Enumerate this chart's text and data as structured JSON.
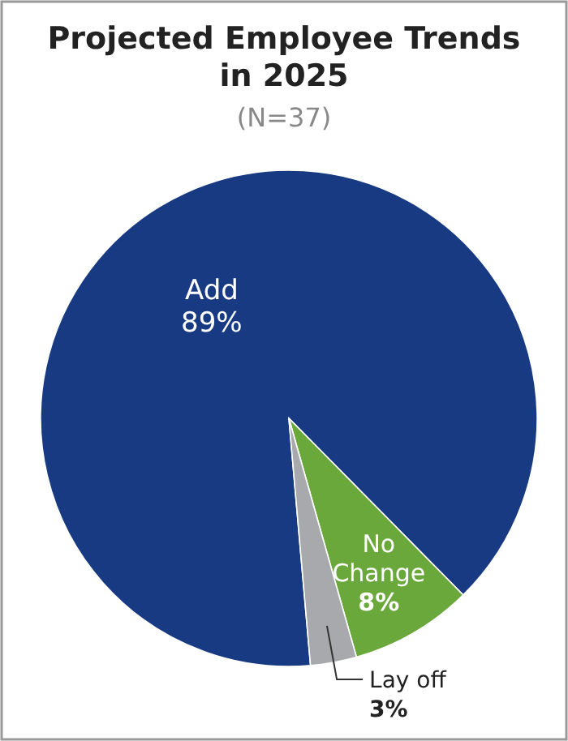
{
  "chart_data": {
    "type": "pie",
    "title": "Projected Employee Trends in 2025",
    "subtitle": "(N=37)",
    "categories": [
      "Add",
      "No Change",
      "Lay off"
    ],
    "values": [
      89,
      8,
      3
    ],
    "colors": [
      "#173a82",
      "#6aa83c",
      "#a7a9ac"
    ],
    "value_labels": [
      "89%",
      "8%",
      "3%"
    ],
    "legend": false
  }
}
